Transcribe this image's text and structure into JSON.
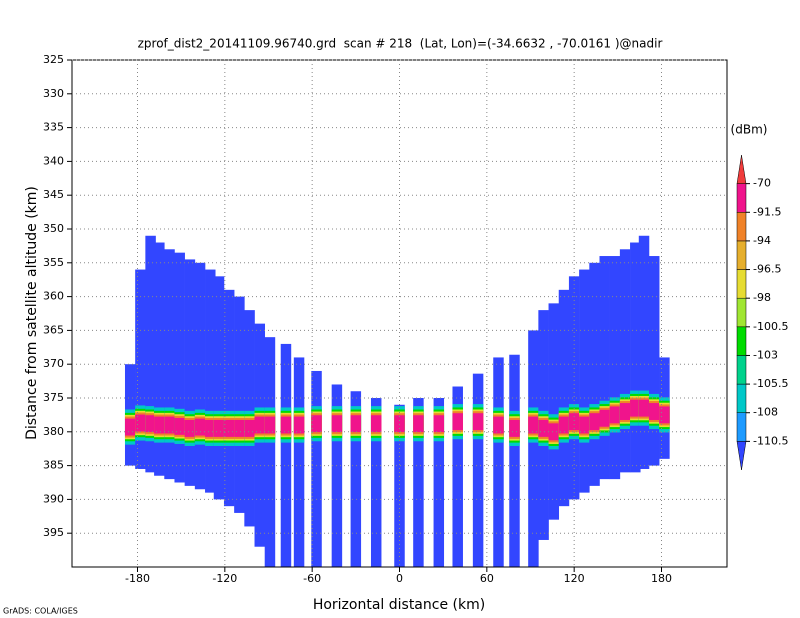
{
  "chart_data": {
    "type": "profile",
    "title": "zprof_dist2_20141109.96740.grd  scan # 218  (Lat, Lon)=(-34.6632 , -70.0161 )@nadir",
    "x_label": "Horizontal distance (km)",
    "y_label": "Distance from satellite altitude (km)",
    "footer": "GrADS: COLA/IGES",
    "xlim": [
      -225,
      225
    ],
    "ylim": [
      400,
      325
    ],
    "xticks": [
      -180,
      -120,
      -60,
      0,
      60,
      120,
      180
    ],
    "yticks": [
      325,
      330,
      335,
      340,
      345,
      350,
      355,
      360,
      365,
      370,
      375,
      380,
      385,
      390,
      395
    ],
    "grid": true,
    "columns": {
      "x": [
        -185,
        -178,
        -171,
        -165,
        -158,
        -151,
        -144,
        -137,
        -130,
        -124,
        -117,
        -110,
        -103,
        -96,
        -89,
        -78,
        -69,
        -57,
        -43,
        -30,
        -16,
        0,
        13,
        27,
        40,
        54,
        68,
        79,
        92,
        99,
        106,
        113,
        120,
        127,
        134,
        141,
        148,
        155,
        162,
        168,
        175,
        182
      ],
      "top": [
        370,
        356,
        351,
        352,
        353,
        353.5,
        354.5,
        355,
        356,
        357,
        359,
        360,
        362,
        364,
        366,
        367,
        369,
        371,
        373,
        374,
        375,
        376,
        375,
        375,
        373.3,
        371.4,
        369,
        368.6,
        365,
        362,
        361,
        359,
        357,
        356,
        355,
        354,
        354,
        353,
        352,
        351,
        354,
        369
      ],
      "bottom": [
        385,
        385.5,
        386,
        386.5,
        387,
        387.5,
        388,
        388.5,
        389,
        390,
        391,
        392,
        394,
        397,
        400,
        400,
        400,
        400,
        400,
        400,
        400,
        400,
        400,
        400,
        400,
        400,
        400,
        400,
        400,
        396,
        393,
        391,
        390,
        389,
        388,
        387,
        387,
        386,
        386,
        385.5,
        385,
        384
      ],
      "peak": [
        379.3,
        378.7,
        378.8,
        379,
        379,
        379.2,
        379.5,
        379.3,
        379.5,
        379.5,
        379.5,
        379.5,
        379.5,
        379,
        379,
        379,
        379,
        378.8,
        378.8,
        378.8,
        378.8,
        378.8,
        378.8,
        378.8,
        378.5,
        378.5,
        379,
        379.5,
        379,
        379.5,
        380,
        379,
        378.5,
        379,
        378.5,
        378,
        377.5,
        377,
        376.5,
        376.5,
        377,
        377.5
      ]
    },
    "colorbar": {
      "unit": "(dBm)",
      "levels": [
        -110.5,
        -108,
        -105.5,
        -103,
        -100.5,
        -98,
        -96.5,
        -94,
        -91.5,
        -70
      ],
      "colors": [
        "#3246ff",
        "#1e9bff",
        "#00c8c8",
        "#00d28c",
        "#00dc00",
        "#a0e632",
        "#e6dc32",
        "#e6af2d",
        "#f08228",
        "#f0148c",
        "#f03c3c"
      ]
    }
  }
}
